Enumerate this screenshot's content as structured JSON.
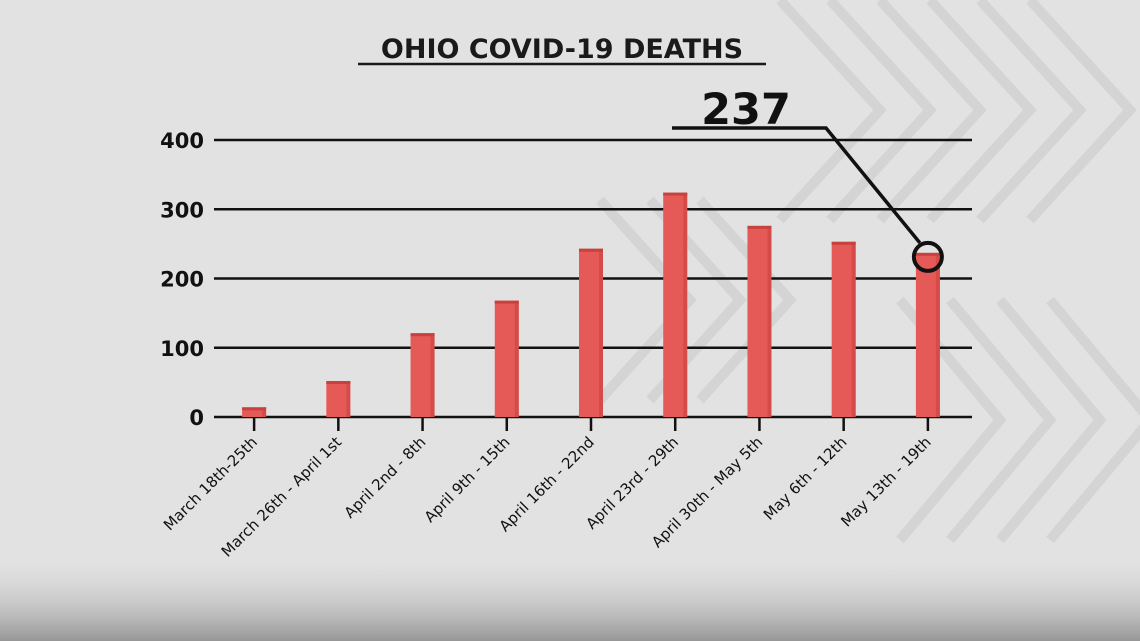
{
  "chart_data": {
    "type": "bar",
    "title": "OHIO COVID-19 DEATHS",
    "xlabel": "",
    "ylabel": "",
    "ylim": [
      0,
      400
    ],
    "yticks": [
      "0",
      "100",
      "200",
      "300",
      "400"
    ],
    "grid": true,
    "categories": [
      "March 18th-25th",
      "March 26th - April 1st",
      "April 2nd - 8th",
      "April 9th - 15th",
      "April 16th - 22nd",
      "April 23rd - 29th",
      "April 30th - May 5th",
      "May 6th - 12th",
      "May 13th - 19th"
    ],
    "values": [
      14,
      52,
      121,
      168,
      243,
      324,
      276,
      253,
      237
    ],
    "callout": {
      "label": "237",
      "category_index": 8
    }
  },
  "colors": {
    "bar": "#e55a56",
    "bar_shade": "#c8413d",
    "background": "#e2e2e2",
    "grid": "#111111"
  }
}
